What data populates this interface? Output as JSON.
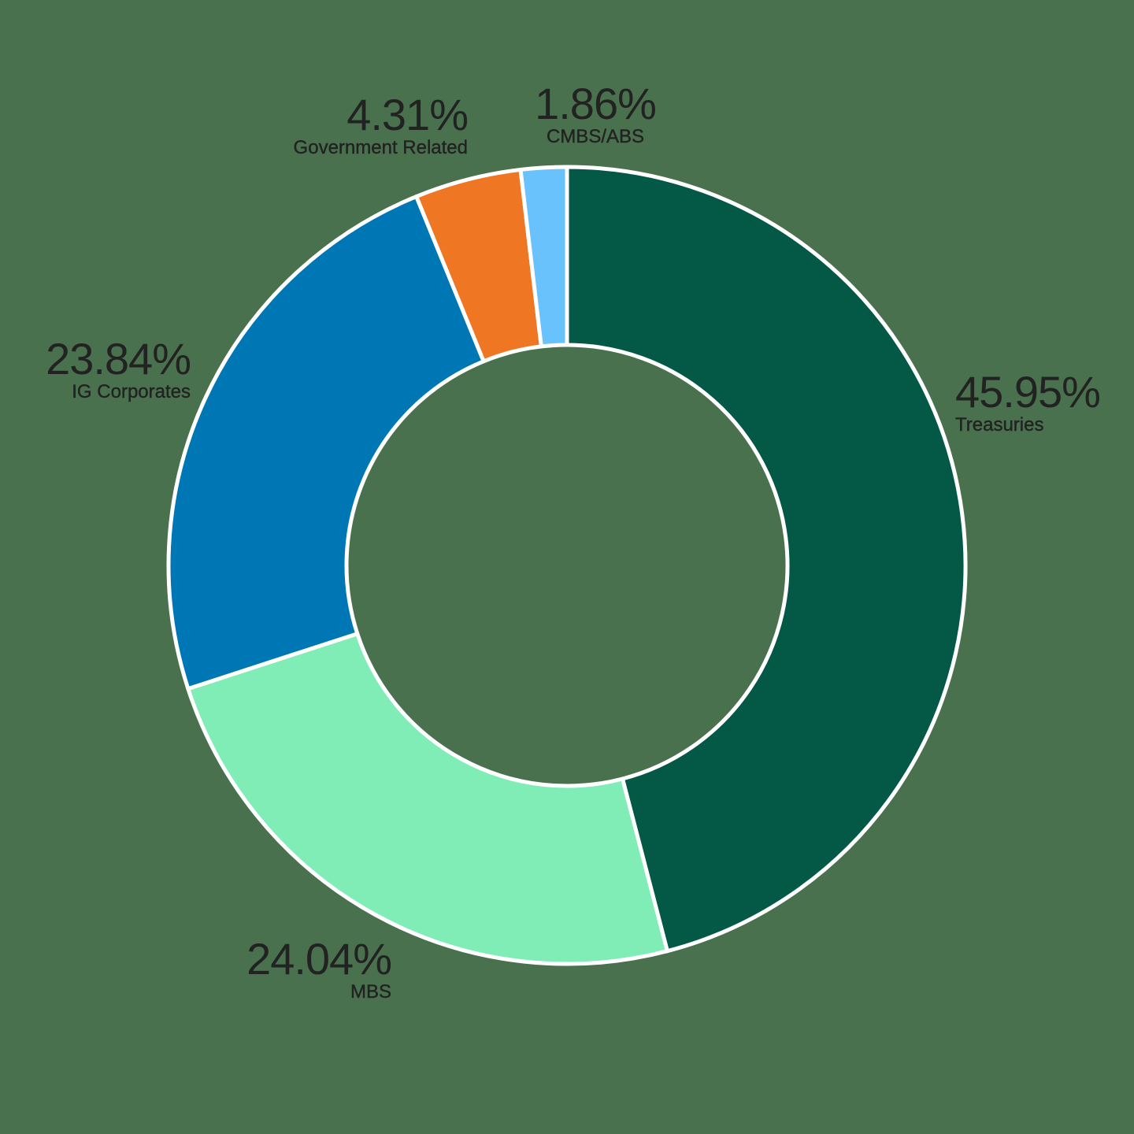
{
  "chart_data": {
    "type": "pie",
    "subtype": "donut",
    "title": "",
    "start_angle_deg": 0,
    "direction": "clockwise",
    "categories": [
      "Treasuries",
      "MBS",
      "IG Corporates",
      "Government Related",
      "CMBS/ABS"
    ],
    "values": [
      45.95,
      24.04,
      23.84,
      4.31,
      1.86
    ],
    "labels": [
      "45.95%",
      "24.04%",
      "23.84%",
      "4.31%",
      "1.86%"
    ],
    "colors": [
      "#035945",
      "#80ecb6",
      "#0077b5",
      "#ef7623",
      "#69c2fc"
    ],
    "legend": "none (labels placed outside slices)"
  },
  "style": {
    "background": "#4a714e",
    "slice_border": "#ffffff",
    "text_color": "#222222"
  },
  "labels": {
    "treasuries": {
      "pct": "45.95%",
      "name": "Treasuries"
    },
    "mbs": {
      "pct": "24.04%",
      "name": "MBS"
    },
    "ig_corporates": {
      "pct": "23.84%",
      "name": "IG Corporates"
    },
    "government_related": {
      "pct": "4.31%",
      "name": "Government Related"
    },
    "cmbs_abs": {
      "pct": "1.86%",
      "name": "CMBS/ABS"
    }
  }
}
